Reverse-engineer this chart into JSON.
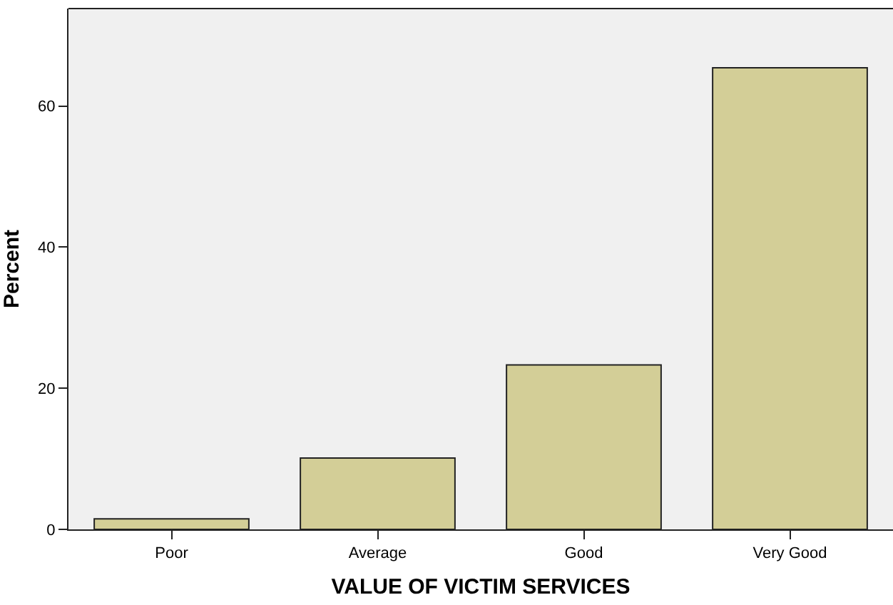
{
  "chart_data": {
    "type": "bar",
    "xlabel": "VALUE OF VICTIM SERVICES",
    "ylabel": "Percent",
    "categories": [
      "Poor",
      "Average",
      "Good",
      "Very Good"
    ],
    "values": [
      1.5,
      10.1,
      23.3,
      65.4
    ],
    "color": "#d3ce97",
    "ylim": [
      0,
      73.8
    ],
    "yticks": [
      0,
      20,
      40,
      60
    ],
    "grid": false,
    "legend": false
  }
}
